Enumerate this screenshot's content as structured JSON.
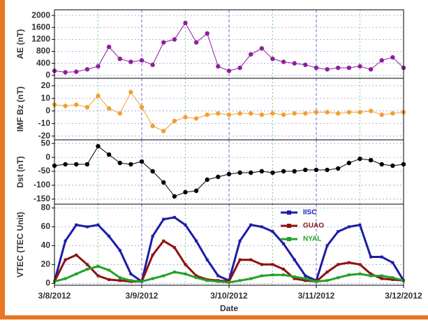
{
  "chart_data": [
    {
      "type": "scatter",
      "ylabel": "AE (nT)",
      "ylim": [
        -100,
        2190
      ],
      "yticks": [
        0,
        400,
        800,
        1200,
        1600,
        2000
      ],
      "xlim": [
        0,
        4
      ],
      "x": [
        0,
        0.125,
        0.25,
        0.375,
        0.5,
        0.625,
        0.75,
        0.875,
        1,
        1.125,
        1.25,
        1.375,
        1.5,
        1.625,
        1.75,
        1.875,
        2,
        2.125,
        2.25,
        2.375,
        2.5,
        2.625,
        2.75,
        2.875,
        3,
        3.125,
        3.25,
        3.375,
        3.5,
        3.625,
        3.75,
        3.875,
        4
      ],
      "series": [
        {
          "color": "#8e1f9c",
          "values": [
            150,
            100,
            120,
            200,
            300,
            950,
            550,
            450,
            500,
            350,
            1100,
            1200,
            1750,
            1100,
            1400,
            300,
            150,
            250,
            700,
            900,
            550,
            450,
            400,
            350,
            250,
            200,
            250,
            250,
            300,
            200,
            500,
            600,
            250
          ]
        }
      ]
    },
    {
      "type": "scatter",
      "ylabel": "IMF Bz (nT)",
      "ylim": [
        -23,
        26
      ],
      "yticks": [
        -20,
        -10,
        0,
        10,
        20
      ],
      "xlim": [
        0,
        4
      ],
      "x": [
        0,
        0.125,
        0.25,
        0.375,
        0.5,
        0.625,
        0.75,
        0.875,
        1,
        1.125,
        1.25,
        1.375,
        1.5,
        1.625,
        1.75,
        1.875,
        2,
        2.125,
        2.25,
        2.375,
        2.5,
        2.625,
        2.75,
        2.875,
        3,
        3.125,
        3.25,
        3.375,
        3.5,
        3.625,
        3.75,
        3.875,
        4
      ],
      "series": [
        {
          "color": "#f0a030",
          "values": [
            5,
            4,
            5,
            3,
            12,
            2,
            -2,
            15,
            3,
            -12,
            -16,
            -8,
            -5,
            -6,
            -3,
            -2,
            -3,
            -2,
            -2,
            -3,
            -2,
            -3,
            -2,
            -2,
            -1,
            -1,
            -2,
            -1,
            -1,
            0,
            -3,
            -2,
            -1
          ]
        }
      ]
    },
    {
      "type": "scatter",
      "ylabel": "Dst (nT)",
      "ylim": [
        -168,
        63
      ],
      "yticks": [
        -150,
        -100,
        -50,
        0,
        50
      ],
      "xlim": [
        0,
        4
      ],
      "x": [
        0,
        0.125,
        0.25,
        0.375,
        0.5,
        0.625,
        0.75,
        0.875,
        1,
        1.125,
        1.25,
        1.375,
        1.5,
        1.625,
        1.75,
        1.875,
        2,
        2.125,
        2.25,
        2.375,
        2.5,
        2.625,
        2.75,
        2.875,
        3,
        3.125,
        3.25,
        3.375,
        3.5,
        3.625,
        3.75,
        3.875,
        4
      ],
      "series": [
        {
          "color": "#000000",
          "values": [
            -30,
            -25,
            -25,
            -25,
            40,
            10,
            -20,
            -25,
            -15,
            -50,
            -90,
            -140,
            -125,
            -120,
            -80,
            -70,
            -60,
            -55,
            -55,
            -50,
            -55,
            -50,
            -50,
            -45,
            -45,
            -45,
            -40,
            -20,
            -5,
            -10,
            -25,
            -30,
            -25
          ]
        }
      ]
    },
    {
      "type": "line",
      "ylabel": "VTEC (TEC Unit)",
      "xlabel": "Date",
      "ylim": [
        -2,
        84
      ],
      "yticks": [
        0,
        20,
        40,
        60,
        80
      ],
      "xlim": [
        0,
        4
      ],
      "xticks": [
        {
          "value": 0,
          "label": "3/8/2012"
        },
        {
          "value": 1,
          "label": "3/9/2012"
        },
        {
          "value": 2,
          "label": "3/10/2012"
        },
        {
          "value": 3,
          "label": "3/11/2012"
        },
        {
          "value": 4,
          "label": "3/12/2012"
        }
      ],
      "x": [
        0,
        0.125,
        0.25,
        0.375,
        0.5,
        0.625,
        0.75,
        0.875,
        1,
        1.125,
        1.25,
        1.375,
        1.5,
        1.625,
        1.75,
        1.875,
        2,
        2.125,
        2.25,
        2.375,
        2.5,
        2.625,
        2.75,
        2.875,
        3,
        3.125,
        3.25,
        3.375,
        3.5,
        3.625,
        3.75,
        3.875,
        4
      ],
      "series": [
        {
          "name": "IISC",
          "color": "#1c1ca6",
          "values": [
            2,
            45,
            62,
            60,
            62,
            50,
            35,
            10,
            2,
            50,
            68,
            70,
            62,
            45,
            25,
            8,
            3,
            45,
            62,
            60,
            55,
            42,
            25,
            8,
            3,
            40,
            55,
            60,
            62,
            28,
            28,
            22,
            3
          ]
        },
        {
          "name": "GUAO",
          "color": "#8e1212",
          "values": [
            2,
            25,
            30,
            20,
            8,
            4,
            3,
            2,
            2,
            30,
            45,
            38,
            20,
            8,
            4,
            3,
            2,
            25,
            25,
            20,
            20,
            15,
            5,
            3,
            2,
            12,
            20,
            22,
            20,
            10,
            5,
            4,
            3
          ]
        },
        {
          "name": "NYAL",
          "color": "#26a026",
          "values": [
            2,
            5,
            10,
            15,
            18,
            14,
            6,
            3,
            2,
            5,
            8,
            12,
            10,
            6,
            3,
            2,
            1,
            3,
            5,
            8,
            9,
            9,
            7,
            5,
            2,
            3,
            6,
            9,
            10,
            8,
            8,
            6,
            3
          ]
        }
      ]
    }
  ]
}
